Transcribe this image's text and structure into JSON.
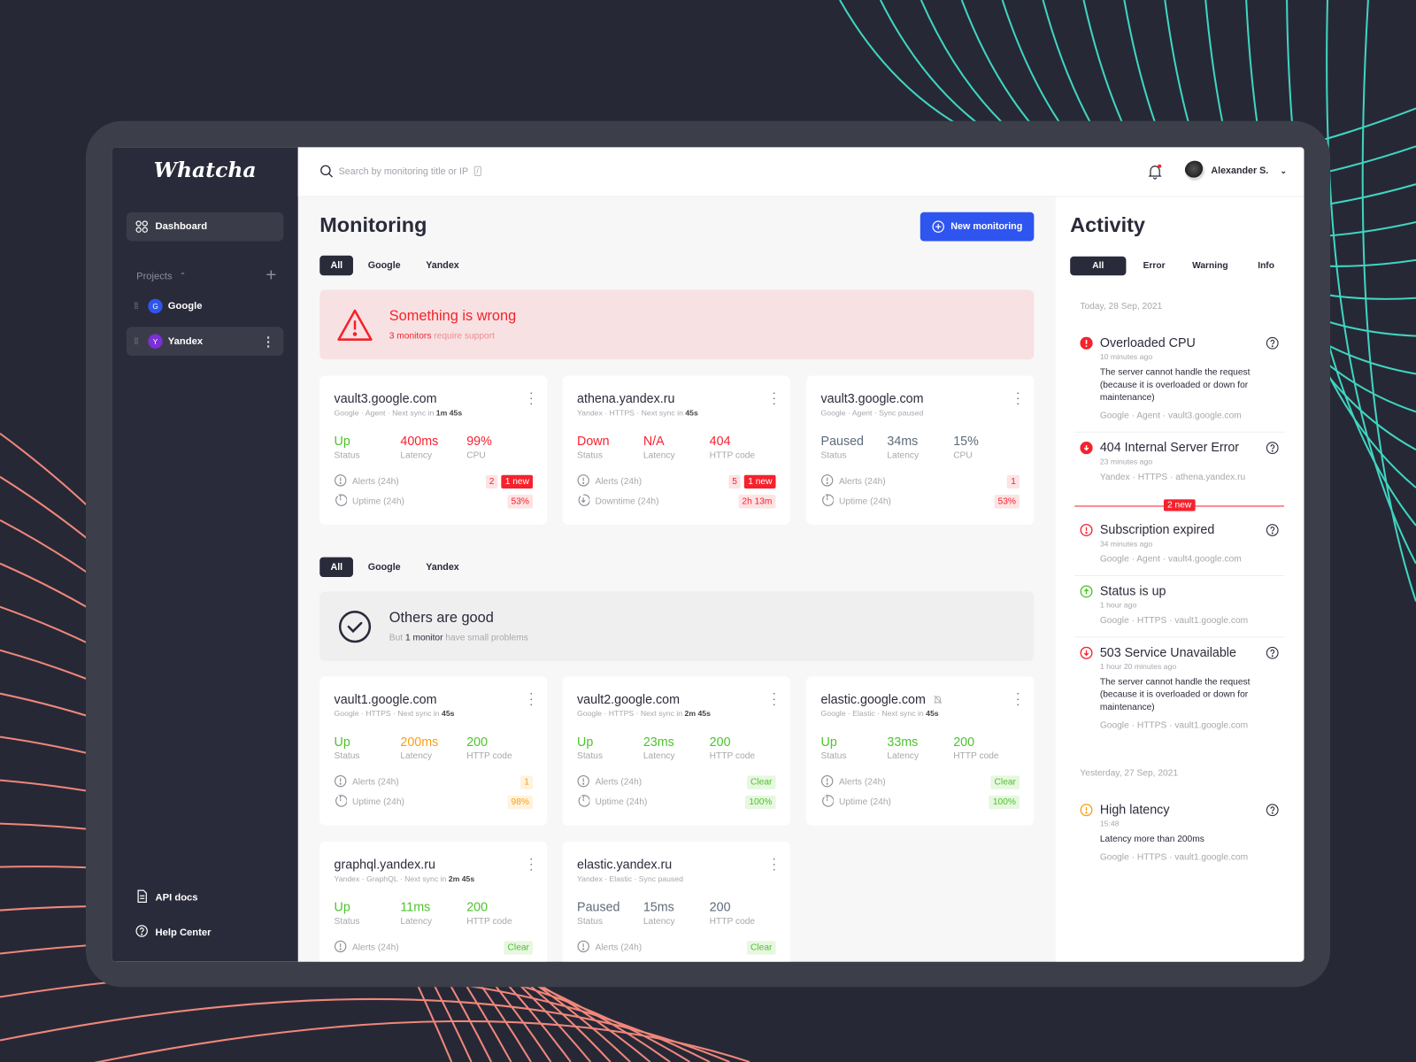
{
  "colors": {
    "accent": "#2f55f0",
    "error": "#f5222d",
    "success": "#4cc42b",
    "warning": "#fa9f14",
    "paused": "#5e6b7a",
    "sidebar": "#2a2b3a"
  },
  "sidebar": {
    "logo": "Whatcha",
    "dashboard": {
      "label": "Dashboard",
      "icon": "grid-icon"
    },
    "projects_label": "Projects",
    "projects": [
      {
        "initial": "G",
        "name": "Google",
        "color": "#2f55f0",
        "active": false
      },
      {
        "initial": "Y",
        "name": "Yandex",
        "color": "#7b2fd8",
        "active": true
      }
    ],
    "footer": [
      {
        "label": "API docs",
        "icon": "document-icon"
      },
      {
        "label": "Help Center",
        "icon": "help-icon"
      }
    ]
  },
  "topbar": {
    "search_placeholder": "Search by monitoring title or IP",
    "search_shortcut": "/",
    "user_name": "Alexander S.",
    "has_notification": true
  },
  "main": {
    "title": "Monitoring",
    "new_button": "New monitoring",
    "tabs": [
      "All",
      "Google",
      "Yandex"
    ],
    "problem_banner": {
      "title": "Something is wrong",
      "count": "3 monitors",
      "text": "require support"
    },
    "good_banner": {
      "title": "Others are good",
      "prefix": "But",
      "count": "1 monitor",
      "text": "have small problems"
    },
    "problem_cards": [
      {
        "title": "vault3.google.com",
        "meta": "Google · Agent · Next sync in",
        "meta_bold": "1m 45s",
        "stats": [
          {
            "v": "Up",
            "l": "Status",
            "c": "green"
          },
          {
            "v": "400ms",
            "l": "Latency",
            "c": "red"
          },
          {
            "v": "99%",
            "l": "CPU",
            "c": "red"
          }
        ],
        "rows": [
          {
            "icon": "alert-icon",
            "label": "Alerts (24h)",
            "badges": [
              {
                "t": "2",
                "k": "red-soft"
              },
              {
                "t": "1 new",
                "k": "red"
              }
            ]
          },
          {
            "icon": "uptime-icon",
            "label": "Uptime (24h)",
            "badges": [
              {
                "t": "53%",
                "k": "red-soft"
              }
            ]
          }
        ]
      },
      {
        "title": "athena.yandex.ru",
        "meta": "Yandex · HTTPS · Next sync in",
        "meta_bold": "45s",
        "stats": [
          {
            "v": "Down",
            "l": "Status",
            "c": "red"
          },
          {
            "v": "N/A",
            "l": "Latency",
            "c": "red"
          },
          {
            "v": "404",
            "l": "HTTP code",
            "c": "red"
          }
        ],
        "rows": [
          {
            "icon": "alert-icon",
            "label": "Alerts (24h)",
            "badges": [
              {
                "t": "5",
                "k": "red-soft"
              },
              {
                "t": "1 new",
                "k": "red"
              }
            ]
          },
          {
            "icon": "downtime-icon",
            "label": "Downtime (24h)",
            "badges": [
              {
                "t": "2h 13m",
                "k": "red-soft"
              }
            ]
          }
        ]
      },
      {
        "title": "vault3.google.com",
        "meta": "Google · Agent · Sync paused",
        "meta_bold": "",
        "stats": [
          {
            "v": "Paused",
            "l": "Status",
            "c": "gray"
          },
          {
            "v": "34ms",
            "l": "Latency",
            "c": "gray"
          },
          {
            "v": "15%",
            "l": "CPU",
            "c": "gray"
          }
        ],
        "rows": [
          {
            "icon": "alert-icon",
            "label": "Alerts (24h)",
            "badges": [
              {
                "t": "1",
                "k": "red-soft"
              }
            ]
          },
          {
            "icon": "uptime-icon",
            "label": "Uptime (24h)",
            "badges": [
              {
                "t": "53%",
                "k": "red-soft"
              }
            ]
          }
        ]
      }
    ],
    "good_cards": [
      {
        "title": "vault1.google.com",
        "meta": "Google · HTTPS · Next sync in",
        "meta_bold": "45s",
        "stats": [
          {
            "v": "Up",
            "l": "Status",
            "c": "green"
          },
          {
            "v": "200ms",
            "l": "Latency",
            "c": "orange"
          },
          {
            "v": "200",
            "l": "HTTP code",
            "c": "green"
          }
        ],
        "rows": [
          {
            "icon": "alert-icon",
            "label": "Alerts (24h)",
            "badges": [
              {
                "t": "1",
                "k": "orange-soft"
              }
            ]
          },
          {
            "icon": "uptime-icon",
            "label": "Uptime (24h)",
            "badges": [
              {
                "t": "98%",
                "k": "orange-soft"
              }
            ]
          }
        ]
      },
      {
        "title": "vault2.google.com",
        "meta": "Google · HTTPS · Next sync in",
        "meta_bold": "2m 45s",
        "stats": [
          {
            "v": "Up",
            "l": "Status",
            "c": "green"
          },
          {
            "v": "23ms",
            "l": "Latency",
            "c": "green"
          },
          {
            "v": "200",
            "l": "HTTP code",
            "c": "green"
          }
        ],
        "rows": [
          {
            "icon": "alert-icon",
            "label": "Alerts (24h)",
            "badges": [
              {
                "t": "Clear",
                "k": "green-soft"
              }
            ]
          },
          {
            "icon": "uptime-icon",
            "label": "Uptime (24h)",
            "badges": [
              {
                "t": "100%",
                "k": "green-soft"
              }
            ]
          }
        ]
      },
      {
        "title": "elastic.google.com",
        "muted": true,
        "meta": "Google · Elastic · Next sync in",
        "meta_bold": "45s",
        "stats": [
          {
            "v": "Up",
            "l": "Status",
            "c": "green"
          },
          {
            "v": "33ms",
            "l": "Latency",
            "c": "green"
          },
          {
            "v": "200",
            "l": "HTTP code",
            "c": "green"
          }
        ],
        "rows": [
          {
            "icon": "alert-icon",
            "label": "Alerts (24h)",
            "badges": [
              {
                "t": "Clear",
                "k": "green-soft"
              }
            ]
          },
          {
            "icon": "uptime-icon",
            "label": "Uptime (24h)",
            "badges": [
              {
                "t": "100%",
                "k": "green-soft"
              }
            ]
          }
        ]
      },
      {
        "title": "graphql.yandex.ru",
        "meta": "Yandex · GraphQL · Next sync in",
        "meta_bold": "2m 45s",
        "stats": [
          {
            "v": "Up",
            "l": "Status",
            "c": "green"
          },
          {
            "v": "11ms",
            "l": "Latency",
            "c": "green"
          },
          {
            "v": "200",
            "l": "HTTP code",
            "c": "green"
          }
        ],
        "rows": [
          {
            "icon": "alert-icon",
            "label": "Alerts (24h)",
            "badges": [
              {
                "t": "Clear",
                "k": "green-soft"
              }
            ]
          }
        ]
      },
      {
        "title": "elastic.yandex.ru",
        "meta": "Yandex · Elastic · Sync paused",
        "meta_bold": "",
        "stats": [
          {
            "v": "Paused",
            "l": "Status",
            "c": "gray"
          },
          {
            "v": "15ms",
            "l": "Latency",
            "c": "gray"
          },
          {
            "v": "200",
            "l": "HTTP code",
            "c": "gray"
          }
        ],
        "rows": [
          {
            "icon": "alert-icon",
            "label": "Alerts (24h)",
            "badges": [
              {
                "t": "Clear",
                "k": "green-soft"
              }
            ]
          }
        ]
      }
    ]
  },
  "activity": {
    "title": "Activity",
    "tabs": [
      "All",
      "Error",
      "Warning",
      "Info"
    ],
    "new_divider": "2 new",
    "groups": [
      {
        "date": "Today, 28 Sep, 2021",
        "items": [
          {
            "icon": "error-filled",
            "title": "Overloaded CPU",
            "time": "10 minutes ago",
            "desc": "The server cannot handle the request (because it is overloaded or down for maintenance)",
            "meta": "Google · Agent · vault3.google.com",
            "help": true
          },
          {
            "icon": "down-filled",
            "title": "404 Internal Server Error",
            "time": "23 minutes ago",
            "desc": "",
            "meta": "Yandex · HTTPS · athena.yandex.ru",
            "help": true,
            "divider_after": true
          },
          {
            "icon": "error-outline",
            "title": "Subscription expired",
            "time": "34 minutes ago",
            "desc": "",
            "meta": "Google · Agent · vault4.google.com",
            "help": true
          },
          {
            "icon": "up-outline",
            "title": "Status is up",
            "time": "1 hour ago",
            "desc": "",
            "meta": "Google · HTTPS · vault1.google.com",
            "help": false
          },
          {
            "icon": "down-outline",
            "title": "503 Service Unavailable",
            "time": "1 hour 20 minutes ago",
            "desc": "The server cannot handle the request (because it is overloaded or down for maintenance)",
            "meta": "Google · HTTPS · vault1.google.com",
            "help": true
          }
        ]
      },
      {
        "date": "Yesterday, 27 Sep, 2021",
        "items": [
          {
            "icon": "warning-outline",
            "title": "High latency",
            "time": "15:48",
            "desc": "Latency more than 200ms",
            "meta": "Google · HTTPS · vault1.google.com",
            "help": true
          }
        ]
      }
    ]
  }
}
